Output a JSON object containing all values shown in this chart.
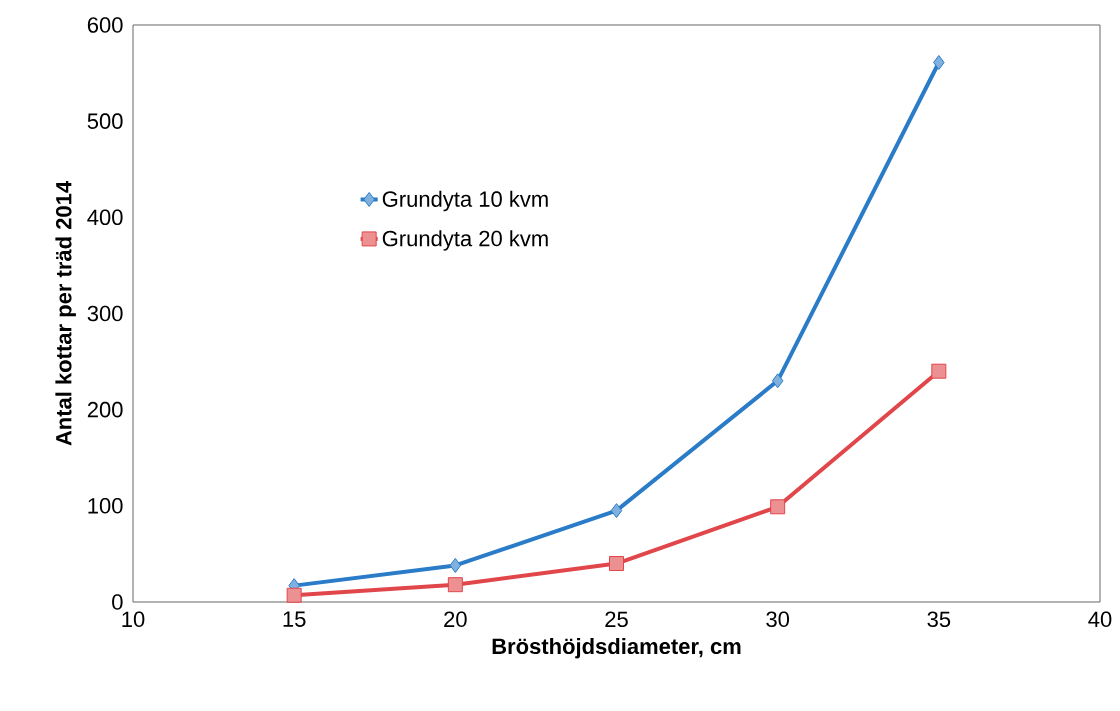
{
  "chart_data": {
    "type": "line",
    "xlabel": "Brösthöjdsdiameter, cm",
    "ylabel": "Antal kottar per träd 2014",
    "x": [
      15,
      20,
      25,
      30,
      35
    ],
    "series": [
      {
        "name": "Grundyta 10 kvm",
        "color": "#2a7bc8",
        "marker": "diamond",
        "values": [
          17,
          38,
          95,
          230,
          561
        ]
      },
      {
        "name": "Grundyta 20 kvm",
        "color": "#e0464a",
        "marker": "square",
        "values": [
          7,
          18,
          40,
          99,
          240
        ]
      }
    ],
    "xlim": [
      10,
      40
    ],
    "xticks": [
      10,
      15,
      20,
      25,
      30,
      35,
      40
    ],
    "ylim": [
      0,
      600
    ],
    "yticks": [
      0,
      100,
      200,
      300,
      400,
      500,
      600
    ],
    "grid": false,
    "legend": "top left",
    "line_style": "solid"
  }
}
